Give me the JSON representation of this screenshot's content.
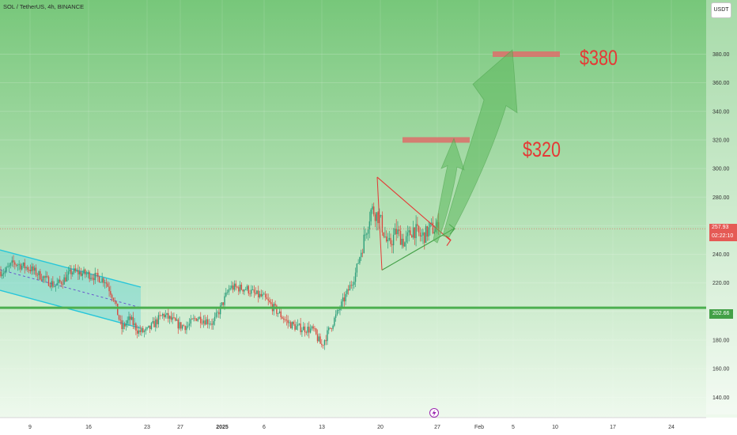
{
  "header": {
    "title": "SOL / TetherUS, 4h, BINANCE",
    "currency_button": "USDT"
  },
  "annotations": {
    "target_high": "$380",
    "target_low": "$320"
  },
  "price_labels": {
    "current_price": "257.93",
    "countdown": "02:22:10",
    "support_level": "202.66"
  },
  "colors": {
    "bg_top": "#77c77a",
    "bg_bottom": "#f3fbf2",
    "up_candle": "#2e9e7b",
    "down_candle": "#d94a3f",
    "support_line": "#4caf50",
    "channel": "#26c6da",
    "triangle_upper": "#e53935",
    "triangle_lower": "#43a047",
    "target_zone": "#d9736b",
    "arrow_fill": "#5cb85c",
    "annotation_text": "#e53935",
    "price_tag": "#e55a55",
    "support_tag": "#43a047"
  },
  "icons": {
    "event_marker": "lightning-icon"
  },
  "chart_data": {
    "type": "candlestick",
    "symbol": "SOL / TetherUS",
    "interval": "4h",
    "exchange": "BINANCE",
    "y_axis": {
      "ticks": [
        140,
        160,
        180,
        200,
        220,
        240,
        260,
        280,
        300,
        320,
        340,
        360,
        380
      ],
      "range": [
        133,
        406
      ],
      "position": "right"
    },
    "x_axis": {
      "ticks": [
        "9",
        "16",
        "23",
        "27",
        "2025",
        "6",
        "13",
        "20",
        "27",
        "Feb",
        "5",
        "10",
        "17",
        "24"
      ]
    },
    "last_price": 257.93,
    "support_level": 202.66,
    "targets": [
      320,
      380
    ],
    "price_path_keypoints": [
      {
        "date": "Dec 6",
        "price": 228
      },
      {
        "date": "Dec 7",
        "price": 234
      },
      {
        "date": "Dec 9",
        "price": 230
      },
      {
        "date": "Dec 10",
        "price": 226
      },
      {
        "date": "Dec 11",
        "price": 222
      },
      {
        "date": "Dec 12",
        "price": 218
      },
      {
        "date": "Dec 13",
        "price": 222
      },
      {
        "date": "Dec 14",
        "price": 228
      },
      {
        "date": "Dec 16",
        "price": 226
      },
      {
        "date": "Dec 18",
        "price": 222
      },
      {
        "date": "Dec 19",
        "price": 210
      },
      {
        "date": "Dec 20",
        "price": 188
      },
      {
        "date": "Dec 21",
        "price": 195
      },
      {
        "date": "Dec 22",
        "price": 186
      },
      {
        "date": "Dec 23",
        "price": 186
      },
      {
        "date": "Dec 25",
        "price": 198
      },
      {
        "date": "Dec 27",
        "price": 190
      },
      {
        "date": "Dec 28",
        "price": 190
      },
      {
        "date": "Dec 29",
        "price": 196
      },
      {
        "date": "Dec 30",
        "price": 194
      },
      {
        "date": "Dec 31",
        "price": 192
      },
      {
        "date": "Jan 1",
        "price": 204
      },
      {
        "date": "Jan 2",
        "price": 217
      },
      {
        "date": "Jan 4",
        "price": 216
      },
      {
        "date": "Jan 5",
        "price": 212
      },
      {
        "date": "Jan 6",
        "price": 210
      },
      {
        "date": "Jan 8",
        "price": 198
      },
      {
        "date": "Jan 9",
        "price": 192
      },
      {
        "date": "Jan 10",
        "price": 189
      },
      {
        "date": "Jan 12",
        "price": 187
      },
      {
        "date": "Jan 13",
        "price": 176
      },
      {
        "date": "Jan 14",
        "price": 188
      },
      {
        "date": "Jan 15",
        "price": 200
      },
      {
        "date": "Jan 16",
        "price": 212
      },
      {
        "date": "Jan 17",
        "price": 225
      },
      {
        "date": "Jan 18",
        "price": 248
      },
      {
        "date": "Jan 19",
        "price": 272
      },
      {
        "date": "Jan 20",
        "price": 265
      },
      {
        "date": "Jan 21",
        "price": 245
      },
      {
        "date": "Jan 22",
        "price": 256
      },
      {
        "date": "Jan 23",
        "price": 248
      },
      {
        "date": "Jan 24",
        "price": 258
      },
      {
        "date": "Jan 25",
        "price": 252
      },
      {
        "date": "Jan 25 12:00",
        "price": 254
      },
      {
        "date": "Jan 26",
        "price": 258
      }
    ]
  }
}
